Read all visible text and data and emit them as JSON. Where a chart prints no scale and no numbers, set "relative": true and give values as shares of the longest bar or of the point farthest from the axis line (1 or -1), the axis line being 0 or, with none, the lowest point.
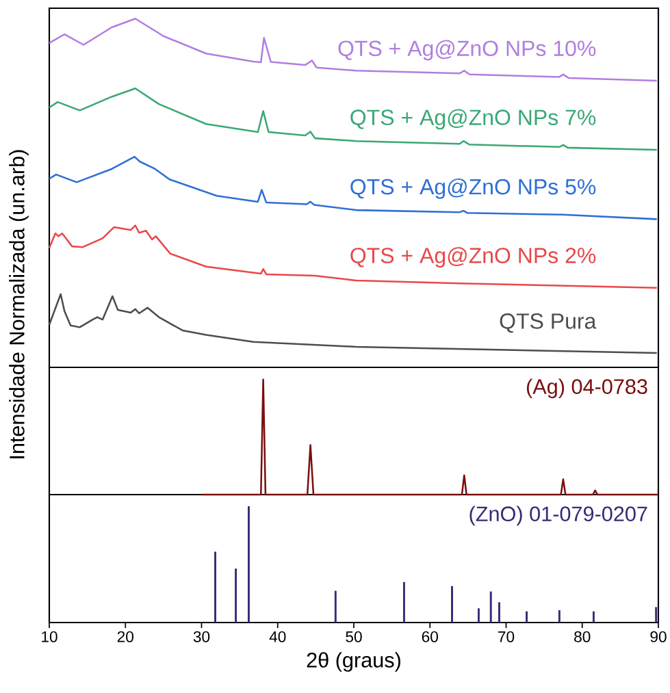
{
  "chart_data": [
    {
      "type": "line",
      "relative": true,
      "xlim": [
        10,
        90
      ],
      "tick_labels": false,
      "ylabel": "Intensidade Normalizada (un.arb)",
      "series": [
        {
          "name": "QTS + Ag@ZnO NPs 10%",
          "color": "#b07ee0",
          "x": [
            10,
            12.0,
            14.5,
            18.2,
            21.3,
            25.0,
            30.6,
            36.8,
            37.8,
            38.2,
            39.1,
            43.6,
            44.5,
            45.1,
            50.3,
            63.9,
            64.5,
            65.2,
            77.0,
            77.5,
            78.2,
            89.8
          ],
          "values": [
            0.93,
            0.955,
            0.925,
            0.975,
            1.0,
            0.95,
            0.9,
            0.877,
            0.875,
            0.945,
            0.876,
            0.867,
            0.88,
            0.86,
            0.851,
            0.843,
            0.851,
            0.84,
            0.833,
            0.84,
            0.83,
            0.822
          ]
        },
        {
          "name": "QTS + Ag@ZnO NPs 7%",
          "color": "#3aa874",
          "x": [
            10,
            11.1,
            14.0,
            18.2,
            21.3,
            24.4,
            30.6,
            37.4,
            38.1,
            38.8,
            43.6,
            44.3,
            44.9,
            50.3,
            63.9,
            64.4,
            65.2,
            77.0,
            77.5,
            78.1,
            89.8
          ],
          "values": [
            0.745,
            0.761,
            0.737,
            0.776,
            0.8,
            0.755,
            0.698,
            0.675,
            0.735,
            0.675,
            0.665,
            0.676,
            0.657,
            0.649,
            0.641,
            0.649,
            0.639,
            0.632,
            0.638,
            0.63,
            0.624
          ]
        },
        {
          "name": "QTS + Ag@ZnO NPs 5%",
          "color": "#2e6fd6",
          "x": [
            10,
            10.9,
            13.6,
            18.2,
            21.2,
            21.9,
            23.9,
            25.8,
            32.0,
            37.4,
            37.9,
            38.5,
            43.8,
            44.3,
            44.8,
            50.3,
            63.9,
            64.4,
            64.9,
            77.4,
            89.8
          ],
          "values": [
            0.541,
            0.553,
            0.531,
            0.569,
            0.604,
            0.59,
            0.569,
            0.539,
            0.492,
            0.475,
            0.509,
            0.473,
            0.468,
            0.475,
            0.466,
            0.451,
            0.445,
            0.449,
            0.443,
            0.438,
            0.425
          ]
        },
        {
          "name": "QTS + Ag@ZnO NPs 2%",
          "color": "#e8484a",
          "x": [
            10,
            10.8,
            11.2,
            11.7,
            13.0,
            14.4,
            17.0,
            18.5,
            20.7,
            21.3,
            21.8,
            22.7,
            23.5,
            24.0,
            25.9,
            30.6,
            37.8,
            38.1,
            38.5,
            44.9,
            50.3,
            63.9,
            89.8
          ],
          "values": [
            0.343,
            0.384,
            0.376,
            0.384,
            0.347,
            0.345,
            0.37,
            0.402,
            0.394,
            0.407,
            0.386,
            0.392,
            0.367,
            0.376,
            0.326,
            0.289,
            0.269,
            0.282,
            0.267,
            0.263,
            0.249,
            0.241,
            0.228
          ]
        },
        {
          "name": "QTS Pura",
          "color": "#4d4d4d",
          "x": [
            10,
            10.9,
            11.5,
            12.0,
            12.8,
            14.0,
            15.7,
            16.3,
            17.0,
            18.3,
            19.0,
            20.7,
            21.3,
            21.8,
            22.9,
            24.4,
            27.5,
            30.6,
            36.8,
            50.3,
            89.8
          ],
          "values": [
            0.122,
            0.175,
            0.21,
            0.161,
            0.12,
            0.115,
            0.137,
            0.144,
            0.137,
            0.204,
            0.165,
            0.157,
            0.167,
            0.155,
            0.171,
            0.144,
            0.106,
            0.093,
            0.073,
            0.059,
            0.041
          ]
        }
      ]
    },
    {
      "type": "line",
      "relative": true,
      "xlim": [
        10,
        90
      ],
      "tick_labels": false,
      "series": [
        {
          "name": "(Ag) 04-0783",
          "color": "#7a0f0f",
          "x": [
            30,
            37.8,
            38.1,
            38.4,
            43.9,
            44.3,
            44.7,
            64.2,
            64.5,
            64.8,
            77.2,
            77.5,
            77.8,
            81.4,
            81.7,
            82.0,
            90
          ],
          "values": [
            0,
            0,
            1,
            0,
            0,
            0.43,
            0,
            0,
            0.168,
            0,
            0,
            0.133,
            0,
            0,
            0.036,
            0,
            0
          ]
        }
      ]
    },
    {
      "type": "bar",
      "relative": true,
      "xlim": [
        10,
        90
      ],
      "xticks": [
        10,
        20,
        30,
        40,
        50,
        60,
        70,
        80,
        90
      ],
      "tick_labels": "x",
      "xlabel": "2θ (graus)",
      "series": [
        {
          "name": "(ZnO) 01-079-0207",
          "color": "#3a2a78",
          "x": [
            31.8,
            34.5,
            36.2,
            47.6,
            56.6,
            62.9,
            66.4,
            68.0,
            69.1,
            72.7,
            77.0,
            81.5,
            89.7
          ],
          "values": [
            0.609,
            0.464,
            1,
            0.273,
            0.348,
            0.313,
            0.122,
            0.267,
            0.174,
            0.096,
            0.106,
            0.096,
            0.133
          ]
        }
      ]
    }
  ]
}
